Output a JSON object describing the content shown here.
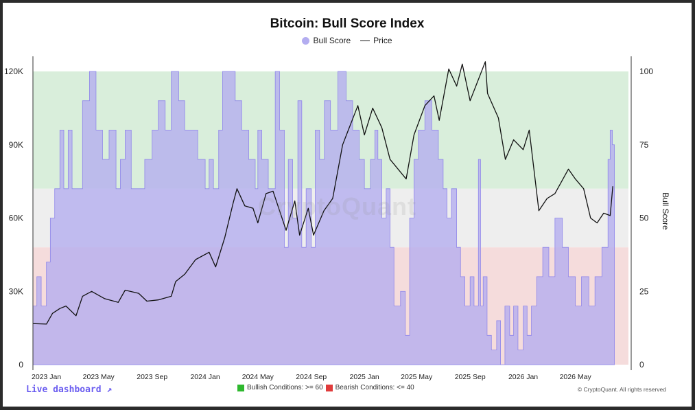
{
  "chart_data": {
    "type": "area",
    "title": "Bitcoin: Bull Score Index",
    "legend": {
      "position": "top",
      "items": [
        "Bull Score",
        "Price"
      ]
    },
    "colors": {
      "bull_score": "#b3adf0",
      "price": "#111111",
      "bullish_zone": "#d9eedb",
      "neutral_zone": "#eeeeee",
      "bearish_zone": "#f5dcdc",
      "bullish_marker": "#2eb82e",
      "bearish_marker": "#e03b3b"
    },
    "x_ticks": [
      "2023 Jan",
      "2023 May",
      "2023 Sep",
      "2024 Jan",
      "2024 May",
      "2024 Sep",
      "2025 Jan",
      "2025 May",
      "2025 Sep",
      "2026 Jan",
      "2026 May"
    ],
    "x_range": [
      "2022-12-01",
      "2026-08-31"
    ],
    "y_left": {
      "label": "",
      "ticks": [
        "0",
        "30K",
        "60K",
        "90K",
        "120K"
      ],
      "range": [
        0,
        120000
      ]
    },
    "y_right": {
      "label": "Bull Score",
      "ticks": [
        "0",
        "25",
        "50",
        "75",
        "100"
      ],
      "range": [
        0,
        100
      ]
    },
    "zones": [
      {
        "name": "bullish",
        "from": 60,
        "to": 100
      },
      {
        "name": "neutral",
        "from": 40,
        "to": 60
      },
      {
        "name": "bearish",
        "from": 0,
        "to": 40
      }
    ],
    "series": [
      {
        "name": "Bull Score",
        "kind": "step-area",
        "points": [
          [
            "2022-12-01",
            20
          ],
          [
            "2022-12-10",
            30
          ],
          [
            "2022-12-20",
            20
          ],
          [
            "2023-01-01",
            35
          ],
          [
            "2023-01-10",
            50
          ],
          [
            "2023-01-20",
            60
          ],
          [
            "2023-02-01",
            80
          ],
          [
            "2023-02-10",
            60
          ],
          [
            "2023-02-20",
            80
          ],
          [
            "2023-03-01",
            60
          ],
          [
            "2023-03-15",
            60
          ],
          [
            "2023-03-25",
            90
          ],
          [
            "2023-04-10",
            100
          ],
          [
            "2023-04-25",
            80
          ],
          [
            "2023-05-10",
            70
          ],
          [
            "2023-05-25",
            80
          ],
          [
            "2023-06-10",
            60
          ],
          [
            "2023-06-20",
            70
          ],
          [
            "2023-07-01",
            80
          ],
          [
            "2023-07-15",
            60
          ],
          [
            "2023-08-01",
            60
          ],
          [
            "2023-08-15",
            70
          ],
          [
            "2023-09-01",
            80
          ],
          [
            "2023-09-15",
            90
          ],
          [
            "2023-10-01",
            80
          ],
          [
            "2023-10-15",
            100
          ],
          [
            "2023-11-01",
            90
          ],
          [
            "2023-11-15",
            80
          ],
          [
            "2023-12-01",
            80
          ],
          [
            "2023-12-15",
            70
          ],
          [
            "2024-01-01",
            60
          ],
          [
            "2024-01-10",
            70
          ],
          [
            "2024-01-20",
            60
          ],
          [
            "2024-02-01",
            80
          ],
          [
            "2024-02-10",
            100
          ],
          [
            "2024-02-25",
            100
          ],
          [
            "2024-03-10",
            90
          ],
          [
            "2024-03-25",
            80
          ],
          [
            "2024-04-10",
            70
          ],
          [
            "2024-04-25",
            60
          ],
          [
            "2024-05-01",
            80
          ],
          [
            "2024-05-10",
            70
          ],
          [
            "2024-05-25",
            60
          ],
          [
            "2024-06-01",
            60
          ],
          [
            "2024-06-10",
            100
          ],
          [
            "2024-06-20",
            80
          ],
          [
            "2024-07-01",
            40
          ],
          [
            "2024-07-10",
            70
          ],
          [
            "2024-07-20",
            50
          ],
          [
            "2024-08-01",
            90
          ],
          [
            "2024-08-10",
            40
          ],
          [
            "2024-08-20",
            60
          ],
          [
            "2024-09-01",
            40
          ],
          [
            "2024-09-10",
            80
          ],
          [
            "2024-09-20",
            70
          ],
          [
            "2024-10-01",
            90
          ],
          [
            "2024-10-15",
            80
          ],
          [
            "2024-11-01",
            100
          ],
          [
            "2024-11-20",
            90
          ],
          [
            "2024-12-05",
            80
          ],
          [
            "2024-12-20",
            70
          ],
          [
            "2025-01-01",
            60
          ],
          [
            "2025-01-15",
            70
          ],
          [
            "2025-01-25",
            80
          ],
          [
            "2025-02-01",
            70
          ],
          [
            "2025-02-10",
            50
          ],
          [
            "2025-02-20",
            60
          ],
          [
            "2025-03-01",
            40
          ],
          [
            "2025-03-10",
            20
          ],
          [
            "2025-03-25",
            25
          ],
          [
            "2025-04-05",
            10
          ],
          [
            "2025-04-15",
            50
          ],
          [
            "2025-04-25",
            70
          ],
          [
            "2025-05-05",
            80
          ],
          [
            "2025-05-20",
            90
          ],
          [
            "2025-06-05",
            80
          ],
          [
            "2025-06-20",
            70
          ],
          [
            "2025-07-01",
            60
          ],
          [
            "2025-07-10",
            50
          ],
          [
            "2025-07-20",
            60
          ],
          [
            "2025-08-01",
            40
          ],
          [
            "2025-08-10",
            30
          ],
          [
            "2025-08-20",
            20
          ],
          [
            "2025-09-01",
            30
          ],
          [
            "2025-09-10",
            20
          ],
          [
            "2025-09-20",
            70
          ],
          [
            "2025-09-25",
            20
          ],
          [
            "2025-10-01",
            30
          ],
          [
            "2025-10-10",
            10
          ],
          [
            "2025-10-20",
            5
          ],
          [
            "2025-11-01",
            15
          ],
          [
            "2025-11-10",
            0
          ],
          [
            "2025-11-20",
            20
          ],
          [
            "2025-12-01",
            10
          ],
          [
            "2025-12-10",
            20
          ],
          [
            "2025-12-20",
            5
          ],
          [
            "2026-01-01",
            20
          ],
          [
            "2026-01-10",
            10
          ],
          [
            "2026-01-20",
            20
          ],
          [
            "2026-02-01",
            30
          ],
          [
            "2026-02-15",
            40
          ],
          [
            "2026-03-01",
            30
          ],
          [
            "2026-03-15",
            50
          ],
          [
            "2026-04-01",
            40
          ],
          [
            "2026-04-15",
            30
          ],
          [
            "2026-05-01",
            20
          ],
          [
            "2026-05-15",
            30
          ],
          [
            "2026-06-01",
            20
          ],
          [
            "2026-06-15",
            30
          ],
          [
            "2026-07-01",
            40
          ],
          [
            "2026-07-15",
            70
          ],
          [
            "2026-07-20",
            80
          ],
          [
            "2026-07-25",
            75
          ]
        ]
      },
      {
        "name": "Price",
        "kind": "line",
        "points": [
          [
            "2022-12-01",
            16800
          ],
          [
            "2023-01-01",
            16600
          ],
          [
            "2023-01-15",
            21000
          ],
          [
            "2023-02-01",
            23000
          ],
          [
            "2023-02-15",
            24000
          ],
          [
            "2023-03-10",
            20000
          ],
          [
            "2023-03-25",
            28000
          ],
          [
            "2023-04-15",
            30000
          ],
          [
            "2023-05-15",
            27000
          ],
          [
            "2023-06-15",
            25500
          ],
          [
            "2023-07-01",
            30500
          ],
          [
            "2023-08-01",
            29200
          ],
          [
            "2023-08-20",
            26000
          ],
          [
            "2023-09-15",
            26500
          ],
          [
            "2023-10-15",
            28000
          ],
          [
            "2023-10-25",
            34000
          ],
          [
            "2023-11-15",
            37000
          ],
          [
            "2023-12-10",
            43000
          ],
          [
            "2024-01-10",
            46000
          ],
          [
            "2024-01-25",
            40000
          ],
          [
            "2024-02-15",
            52000
          ],
          [
            "2024-03-05",
            66000
          ],
          [
            "2024-03-14",
            72000
          ],
          [
            "2024-04-01",
            65000
          ],
          [
            "2024-04-20",
            64000
          ],
          [
            "2024-05-01",
            58000
          ],
          [
            "2024-05-20",
            70000
          ],
          [
            "2024-06-05",
            71000
          ],
          [
            "2024-07-05",
            55000
          ],
          [
            "2024-07-25",
            67000
          ],
          [
            "2024-08-05",
            53000
          ],
          [
            "2024-08-25",
            64000
          ],
          [
            "2024-09-06",
            53000
          ],
          [
            "2024-09-30",
            63000
          ],
          [
            "2024-10-20",
            68000
          ],
          [
            "2024-11-12",
            90000
          ],
          [
            "2024-11-25",
            96000
          ],
          [
            "2024-12-17",
            106000
          ],
          [
            "2025-01-01",
            94000
          ],
          [
            "2025-01-20",
            105000
          ],
          [
            "2025-02-10",
            97000
          ],
          [
            "2025-03-01",
            84000
          ],
          [
            "2025-04-07",
            76000
          ],
          [
            "2025-04-25",
            94000
          ],
          [
            "2025-05-20",
            106000
          ],
          [
            "2025-06-10",
            110000
          ],
          [
            "2025-06-22",
            100000
          ],
          [
            "2025-07-14",
            121000
          ],
          [
            "2025-08-01",
            114000
          ],
          [
            "2025-08-14",
            123000
          ],
          [
            "2025-09-01",
            108000
          ],
          [
            "2025-10-06",
            124000
          ],
          [
            "2025-10-11",
            111000
          ],
          [
            "2025-11-05",
            101000
          ],
          [
            "2025-11-21",
            84000
          ],
          [
            "2025-12-10",
            92000
          ],
          [
            "2026-01-01",
            88000
          ],
          [
            "2026-01-15",
            96000
          ],
          [
            "2026-02-06",
            63000
          ],
          [
            "2026-02-25",
            68000
          ],
          [
            "2026-03-15",
            70000
          ],
          [
            "2026-04-15",
            80000
          ],
          [
            "2026-05-01",
            76000
          ],
          [
            "2026-05-20",
            72000
          ],
          [
            "2026-06-05",
            60000
          ],
          [
            "2026-06-20",
            58000
          ],
          [
            "2026-07-05",
            62000
          ],
          [
            "2026-07-20",
            61000
          ],
          [
            "2026-07-26",
            73000
          ]
        ]
      }
    ]
  },
  "footer": {
    "live_dashboard": "Live dashboard ↗",
    "bullish_label": "Bullish Conditions: >= 60",
    "bearish_label": "Bearish Conditions: <= 40",
    "copyright": "© CryptoQuant. All rights reserved"
  },
  "watermark": "CryptoQuant"
}
